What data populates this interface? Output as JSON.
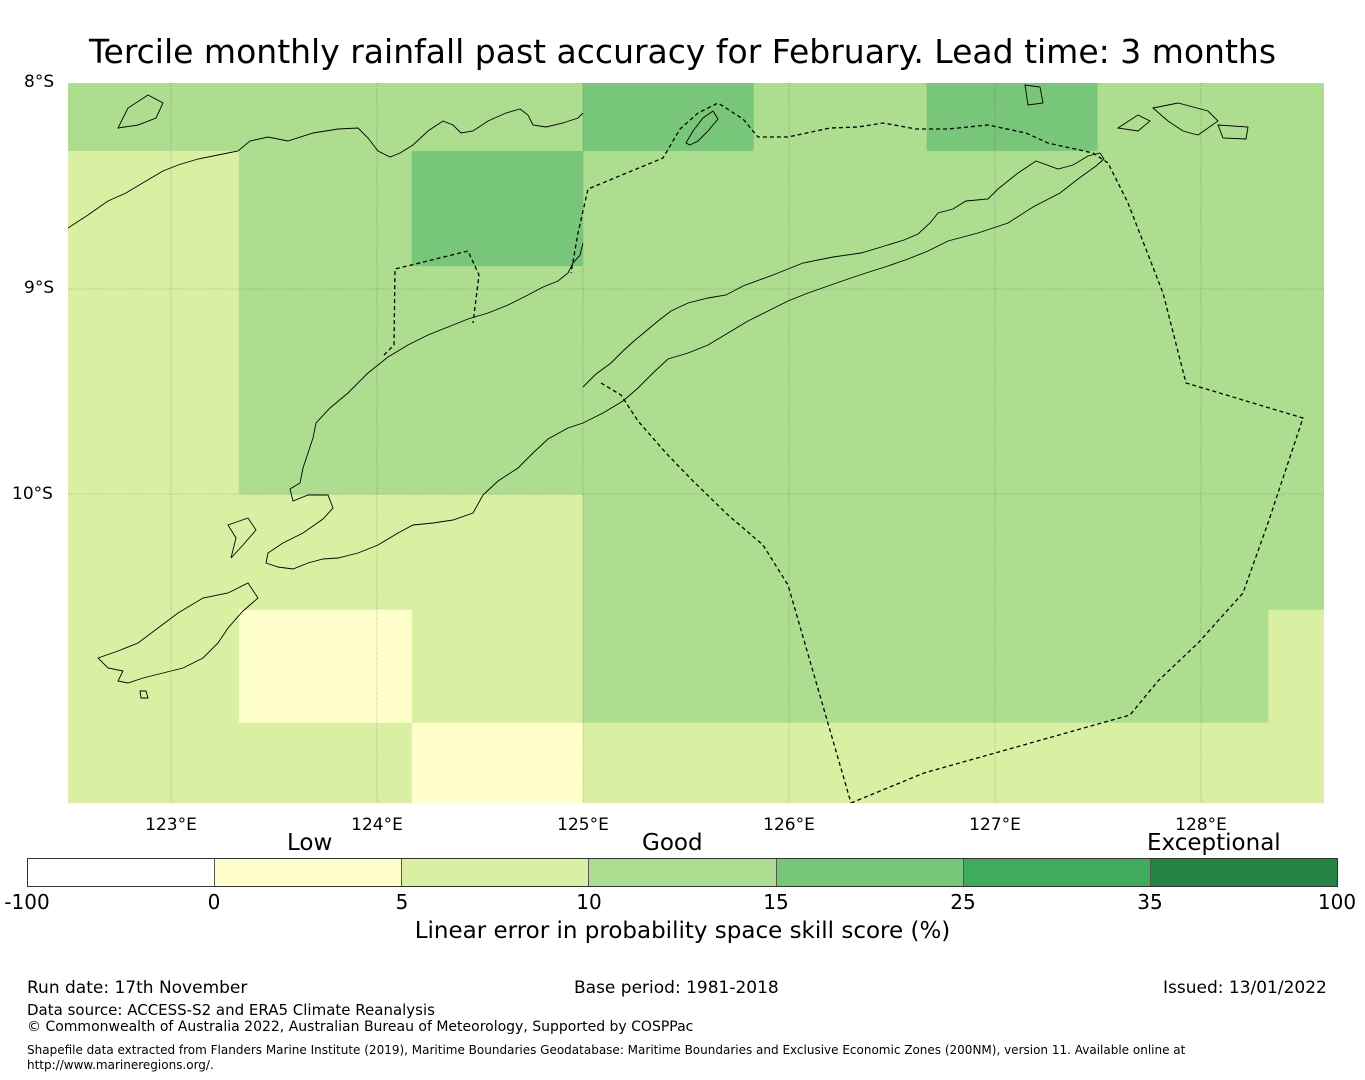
{
  "title": "Tercile monthly rainfall past accuracy for February. Lead time: 3 months",
  "map": {
    "lat_labels": [
      "8°S",
      "9°S",
      "10°S"
    ],
    "lon_labels": [
      "123°E",
      "124°E",
      "125°E",
      "126°E",
      "127°E",
      "128°E"
    ],
    "extent": {
      "lon_min": 122.5,
      "lon_max": 128.6,
      "lat_min": -11.5,
      "lat_max": -8.0
    },
    "grid_cells": [
      {
        "lon0": 122.5,
        "lon1": 125.0,
        "lat0": -8.0,
        "lat1": -8.33,
        "category": "10-15"
      },
      {
        "lon0": 125.0,
        "lon1": 125.83,
        "lat0": -8.0,
        "lat1": -8.33,
        "category": "15-25"
      },
      {
        "lon0": 125.83,
        "lon1": 126.67,
        "lat0": -8.0,
        "lat1": -8.33,
        "category": "10-15"
      },
      {
        "lon0": 126.67,
        "lon1": 127.5,
        "lat0": -8.0,
        "lat1": -8.33,
        "category": "15-25"
      },
      {
        "lon0": 127.5,
        "lon1": 128.6,
        "lat0": -8.0,
        "lat1": -8.33,
        "category": "10-15"
      },
      {
        "lon0": 122.5,
        "lon1": 123.33,
        "lat0": -8.33,
        "lat1": -10.0,
        "category": "5-10"
      },
      {
        "lon0": 123.33,
        "lon1": 124.17,
        "lat0": -8.33,
        "lat1": -10.0,
        "category": "10-15"
      },
      {
        "lon0": 124.17,
        "lon1": 125.0,
        "lat0": -8.33,
        "lat1": -8.89,
        "category": "15-25"
      },
      {
        "lon0": 124.17,
        "lon1": 125.0,
        "lat0": -8.89,
        "lat1": -10.0,
        "category": "10-15"
      },
      {
        "lon0": 125.0,
        "lon1": 128.6,
        "lat0": -8.33,
        "lat1": -10.0,
        "category": "10-15"
      },
      {
        "lon0": 122.5,
        "lon1": 125.0,
        "lat0": -10.0,
        "lat1": -10.56,
        "category": "5-10"
      },
      {
        "lon0": 125.0,
        "lon1": 128.6,
        "lat0": -10.0,
        "lat1": -10.56,
        "category": "10-15"
      },
      {
        "lon0": 122.5,
        "lon1": 123.33,
        "lat0": -10.56,
        "lat1": -11.5,
        "category": "5-10"
      },
      {
        "lon0": 123.33,
        "lon1": 124.17,
        "lat0": -10.56,
        "lat1": -11.11,
        "category": "0-5"
      },
      {
        "lon0": 124.17,
        "lon1": 125.0,
        "lat0": -10.56,
        "lat1": -11.11,
        "category": "5-10"
      },
      {
        "lon0": 125.0,
        "lon1": 128.33,
        "lat0": -10.56,
        "lat1": -11.11,
        "category": "10-15"
      },
      {
        "lon0": 128.33,
        "lon1": 128.6,
        "lat0": -10.56,
        "lat1": -11.5,
        "category": "5-10"
      },
      {
        "lon0": 123.33,
        "lon1": 124.17,
        "lat0": -11.11,
        "lat1": -11.5,
        "category": "5-10"
      },
      {
        "lon0": 124.17,
        "lon1": 125.0,
        "lat0": -11.11,
        "lat1": -11.5,
        "category": "0-5"
      },
      {
        "lon0": 125.0,
        "lon1": 128.33,
        "lat0": -11.11,
        "lat1": -11.5,
        "category": "5-10"
      }
    ]
  },
  "colorbar": {
    "categories": [
      "Low",
      "Good",
      "Exceptional"
    ],
    "ticks": [
      "-100",
      "0",
      "5",
      "10",
      "15",
      "25",
      "35",
      "100"
    ],
    "colors": [
      "#ffffff",
      "#ffffcc",
      "#d9f0a3",
      "#addd8e",
      "#78c679",
      "#41ab5d",
      "#238443"
    ],
    "label": "Linear error in probability space skill score (%)"
  },
  "footer": {
    "run_date": "Run date: 17th November",
    "base_period": "Base period: 1981-2018",
    "issued": "Issued: 13/01/2022",
    "data_source": "Data source: ACCESS-S2 and ERA5 Climate Reanalysis",
    "copyright": "© Commonwealth of Australia 2022, Australian Bureau of Meteorology, Supported by COSPPac",
    "shapefile": "Shapefile data extracted from Flanders Marine Institute (2019), Maritime Boundaries Geodatabase: Maritime Boundaries and Exclusive Economic Zones (200NM), version 11. Available online at http://www.marineregions.org/."
  }
}
